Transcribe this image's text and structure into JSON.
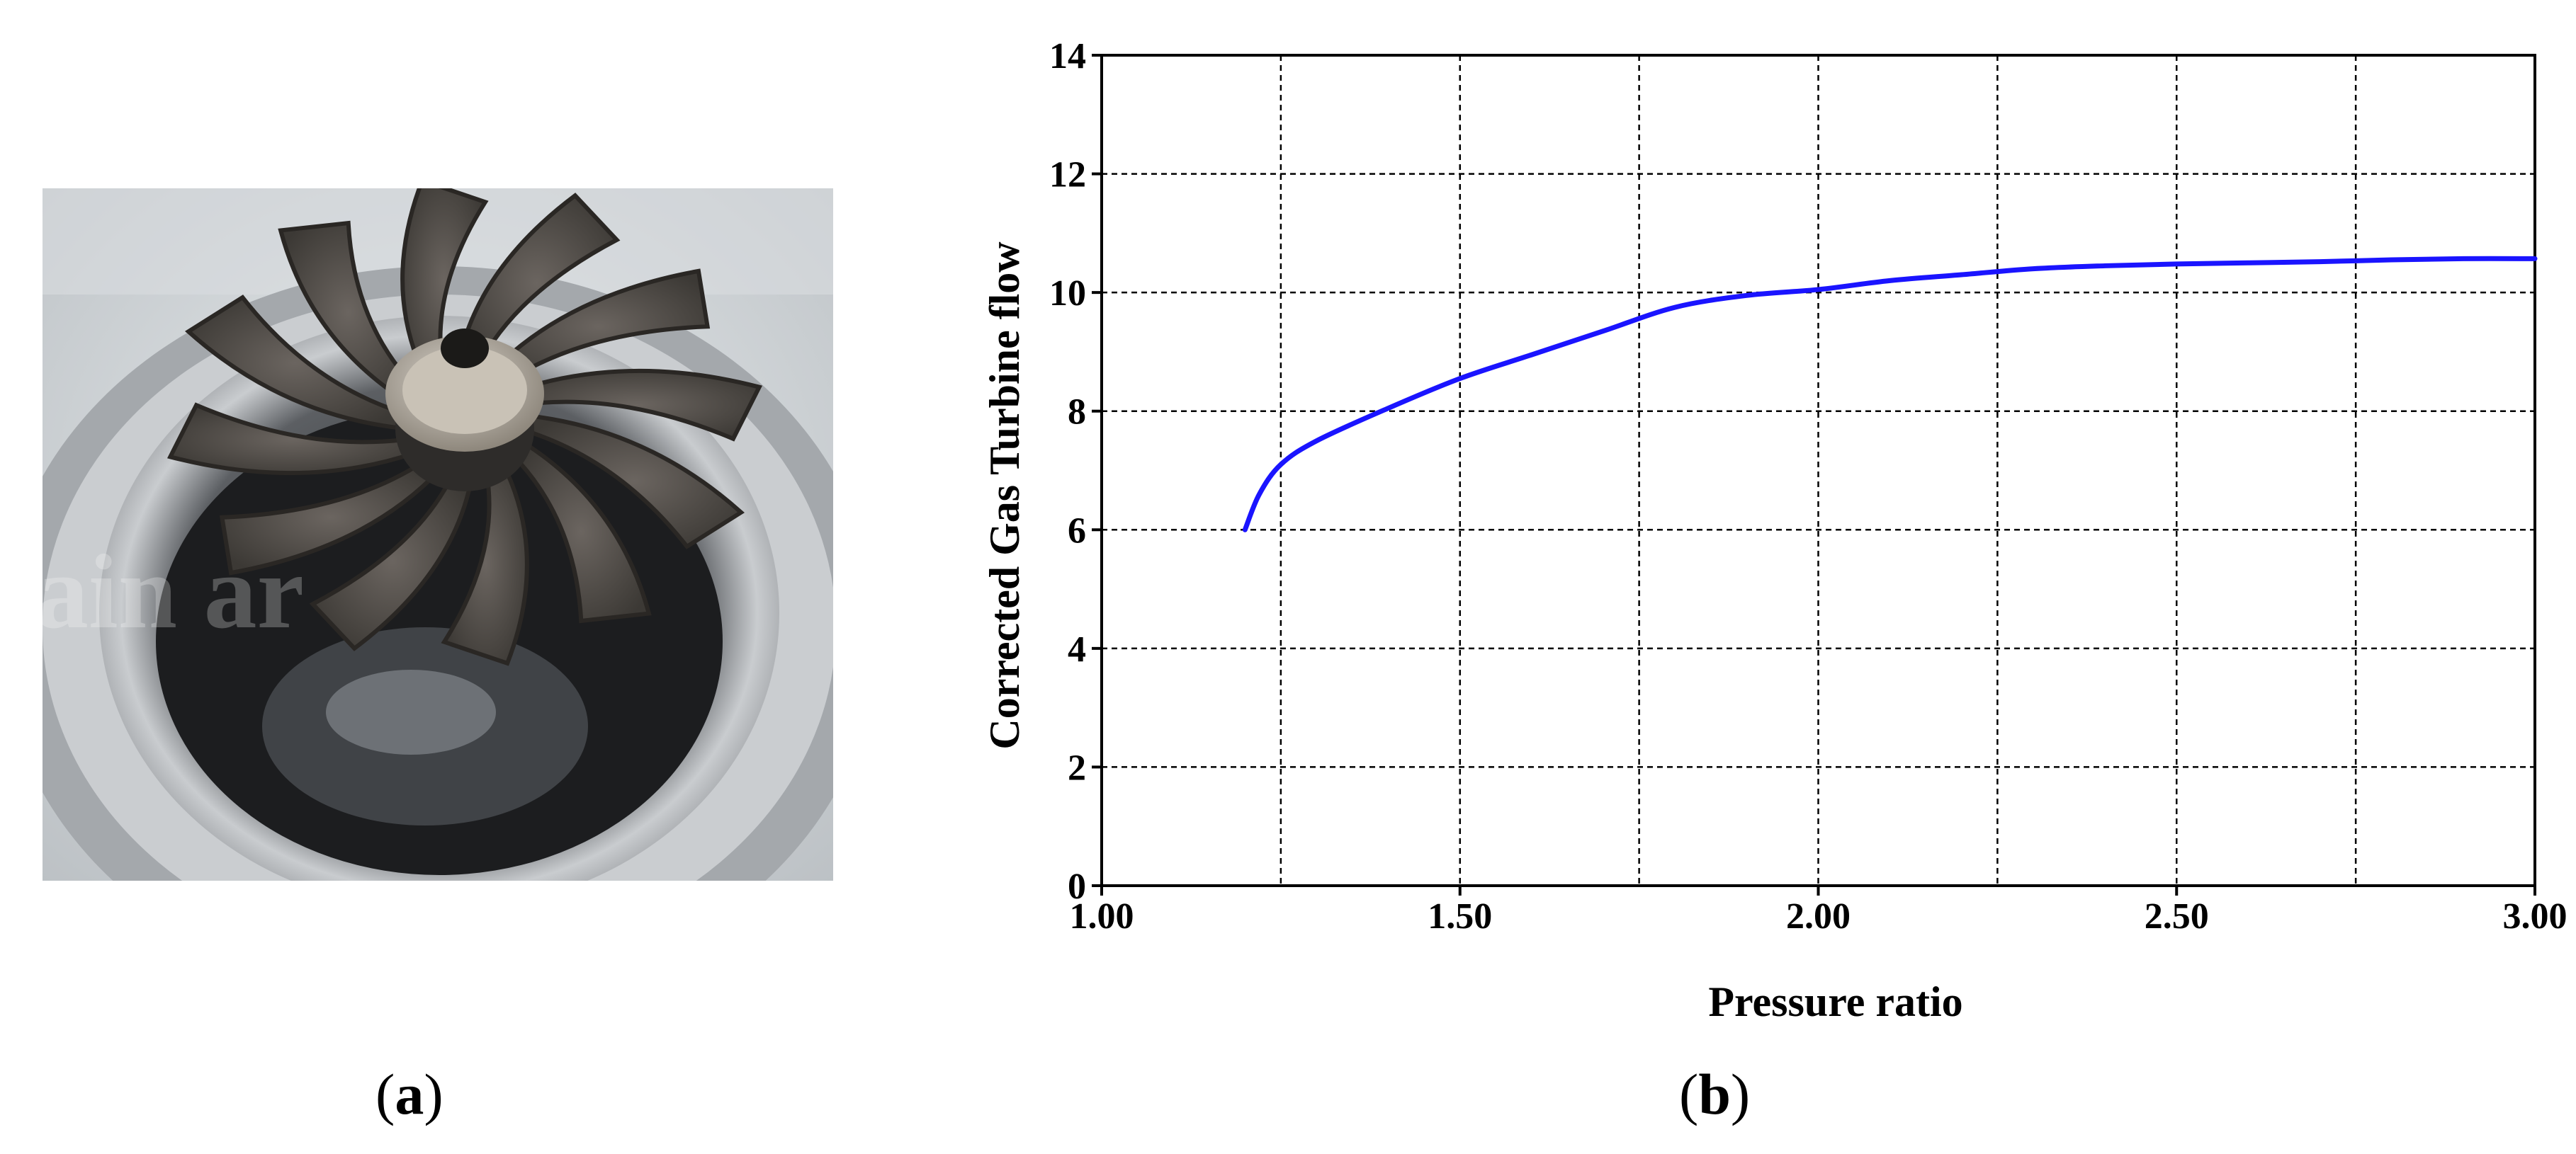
{
  "panel_a": {
    "caption_open": "(",
    "caption_letter": "a",
    "caption_close": ")",
    "watermark": "ain    ar"
  },
  "panel_b": {
    "caption_open": "(",
    "caption_letter": "b",
    "caption_close": ")"
  },
  "chart_data": {
    "type": "line",
    "title": "",
    "xlabel": "Pressure ratio",
    "ylabel": "Corrected Gas Turbine flow",
    "xlim": [
      1.0,
      3.0
    ],
    "ylim": [
      0,
      14
    ],
    "x_ticks": [
      1.0,
      1.5,
      2.0,
      2.5,
      3.0
    ],
    "x_tick_labels": [
      "1.00",
      "1.50",
      "2.00",
      "2.50",
      "3.00"
    ],
    "x_grid": [
      1.25,
      1.5,
      1.75,
      2.0,
      2.25,
      2.5,
      2.75
    ],
    "y_ticks": [
      0,
      2,
      4,
      6,
      8,
      10,
      12,
      14
    ],
    "y_tick_labels": [
      "0",
      "2",
      "4",
      "6",
      "8",
      "10",
      "12",
      "14"
    ],
    "grid": true,
    "grid_style": "dashed",
    "series": [
      {
        "color": "#1a14ff",
        "x": [
          1.2,
          1.22,
          1.25,
          1.3,
          1.4,
          1.5,
          1.6,
          1.7,
          1.8,
          1.9,
          2.0,
          2.1,
          2.2,
          2.3,
          2.4,
          2.5,
          2.6,
          2.7,
          2.8,
          2.9,
          3.0
        ],
        "y": [
          6.0,
          6.6,
          7.1,
          7.5,
          8.05,
          8.55,
          8.95,
          9.35,
          9.75,
          9.95,
          10.05,
          10.2,
          10.3,
          10.4,
          10.45,
          10.48,
          10.5,
          10.52,
          10.55,
          10.57,
          10.57
        ]
      }
    ]
  }
}
